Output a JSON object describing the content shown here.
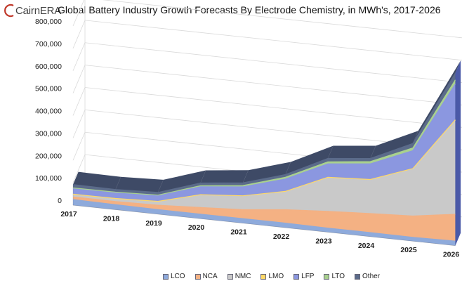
{
  "logo": {
    "text": "CairnERA",
    "mark_color": "#c0392b"
  },
  "chart_data": {
    "type": "area",
    "title": "Global Battery Industry Growth Forecasts By Electrode Chemistry, in MWh's, 2017-2026",
    "x": [
      "2017",
      "2018",
      "2019",
      "2020",
      "2021",
      "2022",
      "2023",
      "2024",
      "2025",
      "2026"
    ],
    "ylim": [
      0,
      800000
    ],
    "yticks": [
      "0",
      "100,000",
      "200,000",
      "300,000",
      "400,000",
      "500,000",
      "600,000",
      "700,000",
      "800,000"
    ],
    "stacked": true,
    "three_d": true,
    "grid": true,
    "legend_position": "bottom",
    "series": [
      {
        "name": "LCO",
        "color": "#8eaadb",
        "values": [
          25000,
          22000,
          20000,
          20000,
          20000,
          20000,
          18000,
          18000,
          17000,
          20000
        ]
      },
      {
        "name": "NCA",
        "color": "#f4b183",
        "values": [
          12000,
          14000,
          20000,
          30000,
          40000,
          60000,
          75000,
          85000,
          95000,
          120000
        ]
      },
      {
        "name": "NMC",
        "color": "#c9c9c9",
        "values": [
          10000,
          12000,
          15000,
          55000,
          60000,
          80000,
          150000,
          150000,
          210000,
          420000
        ]
      },
      {
        "name": "LMO",
        "color": "#ffd966",
        "values": [
          2000,
          2000,
          2000,
          2000,
          2000,
          2000,
          2000,
          2000,
          2000,
          2000
        ]
      },
      {
        "name": "LFP",
        "color": "#8b97e0",
        "values": [
          25000,
          25000,
          25000,
          35000,
          40000,
          55000,
          60000,
          70000,
          80000,
          160000
        ]
      },
      {
        "name": "LTO",
        "color": "#a9d18e",
        "values": [
          3000,
          3000,
          3000,
          5000,
          6000,
          8000,
          9000,
          10000,
          12000,
          18000
        ]
      },
      {
        "name": "Other",
        "color": "#5b6b8a",
        "values": [
          15000,
          12000,
          12000,
          12000,
          12000,
          12000,
          15000,
          14000,
          20000,
          30000
        ]
      }
    ]
  }
}
